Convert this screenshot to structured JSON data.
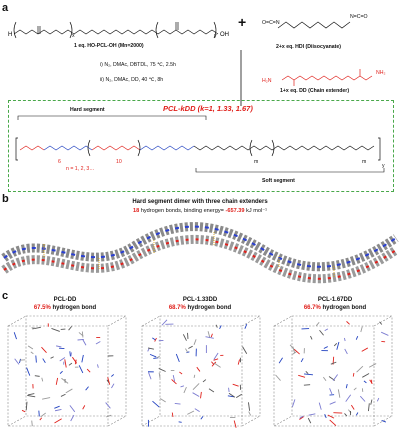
{
  "panel_a": {
    "letter": "a",
    "reagent1_label": "1 eq. HO-PCL-OH (Mn=2000)",
    "reagent2_label": "2+x eq. HDI (Diisocyanate)",
    "reagent3_label": "1+x eq. DD (Chain extender)",
    "plus": "+",
    "cond1": "i)    N₂, DMAc, DBTDL, 75 ℃,   2.5h",
    "cond2": "ii)   N₂, DMAc, DD, 40 ℃,   8h",
    "hard_segment": "Hard segment",
    "soft_segment": "Soft segment",
    "product_title": "PCL-kDD (k=1, 1.33, 1.67)",
    "n_label": "n = 1, 2, 3…",
    "h2n_left": "H₂N",
    "nh2_right": "NH₂",
    "ocn": "O=C=N",
    "nco": "N=C=O",
    "sub_x": "x",
    "sub_y": "y",
    "sub_m": "m",
    "sub_n": "n",
    "sub_6": "6",
    "sub_10": "10"
  },
  "panel_b": {
    "letter": "b",
    "title": "Hard segment dimer with three chain extenders",
    "hbonds_count": "18",
    "hbonds_text": "hydrogen bonds, binding energy=",
    "energy_value": "-657.39",
    "energy_unit": "kJ mol⁻¹"
  },
  "panel_c": {
    "letter": "c",
    "boxes": [
      {
        "title": "PCL-DD",
        "percent": "67.5%",
        "suffix": "hydrogen bond"
      },
      {
        "title": "PCL-1.33DD",
        "percent": "68.7%",
        "suffix": "hydrogen bond"
      },
      {
        "title": "PCL-1.67DD",
        "percent": "66.7%",
        "suffix": "hydrogen bond"
      }
    ]
  },
  "colors": {
    "accent_red": "#e0201b",
    "dashed_green": "#49a84a",
    "blue": "#2040c0"
  }
}
